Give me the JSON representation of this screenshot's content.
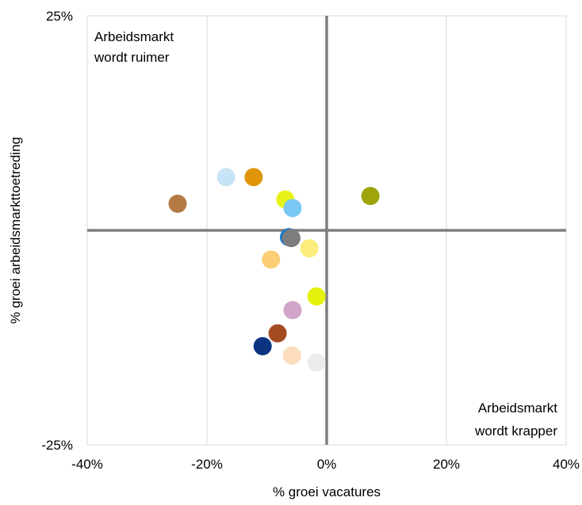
{
  "chart_data": {
    "type": "scatter",
    "title": "",
    "xlabel": "% groei vacatures",
    "ylabel": "% groei arbeidsmarkttoetreding",
    "xlim": [
      -40,
      40
    ],
    "ylim": [
      -25,
      25
    ],
    "x_ticks": [
      -40,
      -20,
      0,
      20,
      40
    ],
    "x_tick_labels": [
      "-40%",
      "-20%",
      "0%",
      "20%",
      "40%"
    ],
    "y_tick_labels": [
      "25%",
      "-25%"
    ],
    "y_ticks": [
      25,
      -25
    ],
    "grid": true,
    "annotations": {
      "top_left_line1": "Arbeidsmarkt",
      "top_left_line2": "wordt ruimer",
      "bottom_right_line1": "Arbeidsmarkt",
      "bottom_right_line2": "wordt krapper"
    },
    "points": [
      {
        "x": -16.8,
        "y": 6.2,
        "color": "#c6e4f5"
      },
      {
        "x": -12.2,
        "y": 6.2,
        "color": "#e0950a"
      },
      {
        "x": -24.9,
        "y": 3.1,
        "color": "#b57a44"
      },
      {
        "x": -6.9,
        "y": 3.6,
        "color": "#e6f218"
      },
      {
        "x": -5.7,
        "y": 2.6,
        "color": "#7cc8f4"
      },
      {
        "x": 7.3,
        "y": 4.0,
        "color": "#9ea50c"
      },
      {
        "x": -6.3,
        "y": -0.8,
        "color": "#1f78c8"
      },
      {
        "x": -5.9,
        "y": -0.9,
        "color": "#7d7d7d"
      },
      {
        "x": -2.9,
        "y": -2.1,
        "color": "#fbec7c"
      },
      {
        "x": -9.3,
        "y": -3.4,
        "color": "#fbcd74"
      },
      {
        "x": -1.7,
        "y": -7.7,
        "color": "#e4f20c"
      },
      {
        "x": -5.7,
        "y": -9.3,
        "color": "#d2a4c8"
      },
      {
        "x": -8.2,
        "y": -12.0,
        "color": "#a34c22"
      },
      {
        "x": -10.7,
        "y": -13.5,
        "color": "#0b3380"
      },
      {
        "x": -5.8,
        "y": -14.6,
        "color": "#fbdcbc"
      },
      {
        "x": -1.7,
        "y": -15.4,
        "color": "#ececec"
      }
    ]
  }
}
